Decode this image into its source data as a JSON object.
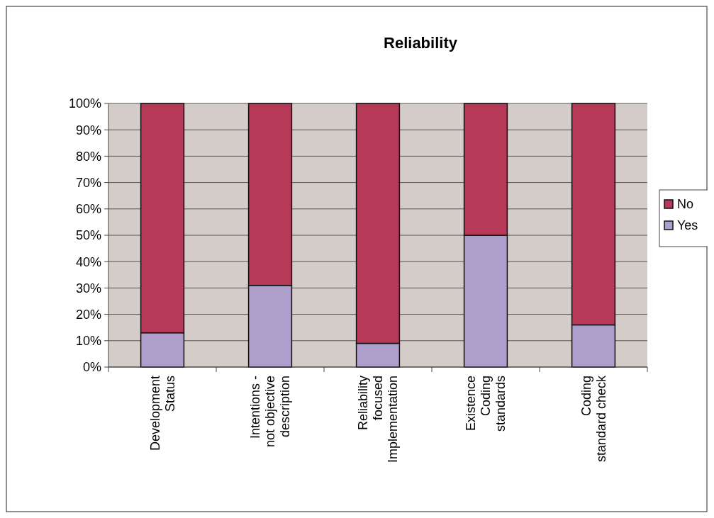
{
  "chart_data": {
    "type": "bar",
    "title": "Reliability",
    "stacked": true,
    "categories": [
      "Development Status",
      "Intentions - not objective description",
      "Reliability focused Implementation",
      "Existence Coding standards",
      "Coding standard check"
    ],
    "series": [
      {
        "name": "Yes",
        "color": "#ae9ecc",
        "values": [
          13,
          31,
          9,
          50,
          16
        ]
      },
      {
        "name": "No",
        "color": "#b63a58",
        "values": [
          87,
          69,
          91,
          50,
          84
        ]
      }
    ],
    "ylim": [
      0,
      100
    ],
    "yticks": [
      {
        "value": 0,
        "label": "0%"
      },
      {
        "value": 10,
        "label": "10%"
      },
      {
        "value": 20,
        "label": "20%"
      },
      {
        "value": 30,
        "label": "30%"
      },
      {
        "value": 40,
        "label": "40%"
      },
      {
        "value": 50,
        "label": "50%"
      },
      {
        "value": 60,
        "label": "60%"
      },
      {
        "value": 70,
        "label": "70%"
      },
      {
        "value": 80,
        "label": "80%"
      },
      {
        "value": 90,
        "label": "90%"
      },
      {
        "value": 100,
        "label": "100%"
      }
    ],
    "grid": "y",
    "legend": "right"
  }
}
